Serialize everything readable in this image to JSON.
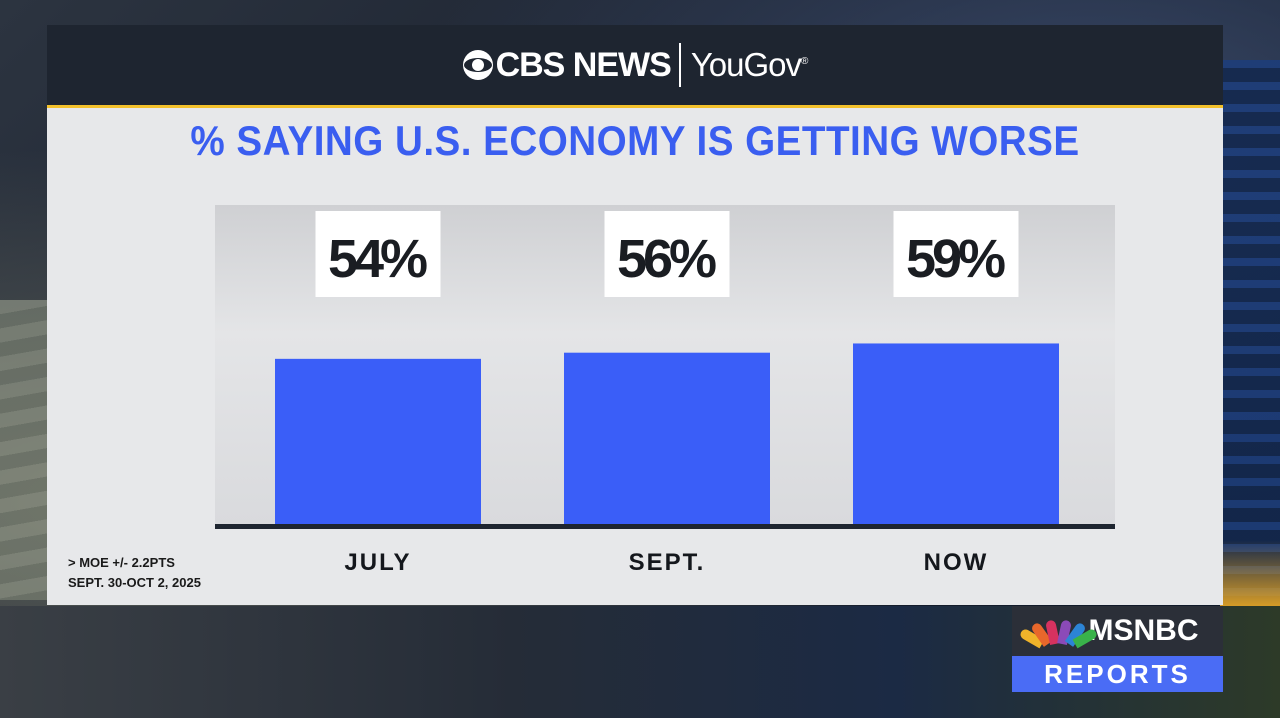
{
  "header": {
    "brand_left": "CBS NEWS",
    "brand_right": "YouGov",
    "brand_right_mark": "®"
  },
  "chart_data": {
    "type": "bar",
    "title": "% SAYING U.S. ECONOMY IS GETTING WORSE",
    "categories": [
      "JULY",
      "SEPT.",
      "NOW"
    ],
    "values": [
      54,
      56,
      59
    ],
    "value_labels": [
      "54%",
      "56%",
      "59%"
    ],
    "xlabel": "",
    "ylabel": "",
    "bar_color": "#3a5ef8",
    "axis_color": "#1e2530"
  },
  "footnote": {
    "line1": "> MOE +/- 2.2PTS",
    "line2": "SEPT. 30-OCT 2, 2025"
  },
  "badge": {
    "name": "MSNBC",
    "show": "REPORTS"
  },
  "colors": {
    "title": "#3a5ef0",
    "header_bg": "#1e2530",
    "header_rule": "#f3c12b",
    "badge_blue": "#4a6cf5"
  }
}
